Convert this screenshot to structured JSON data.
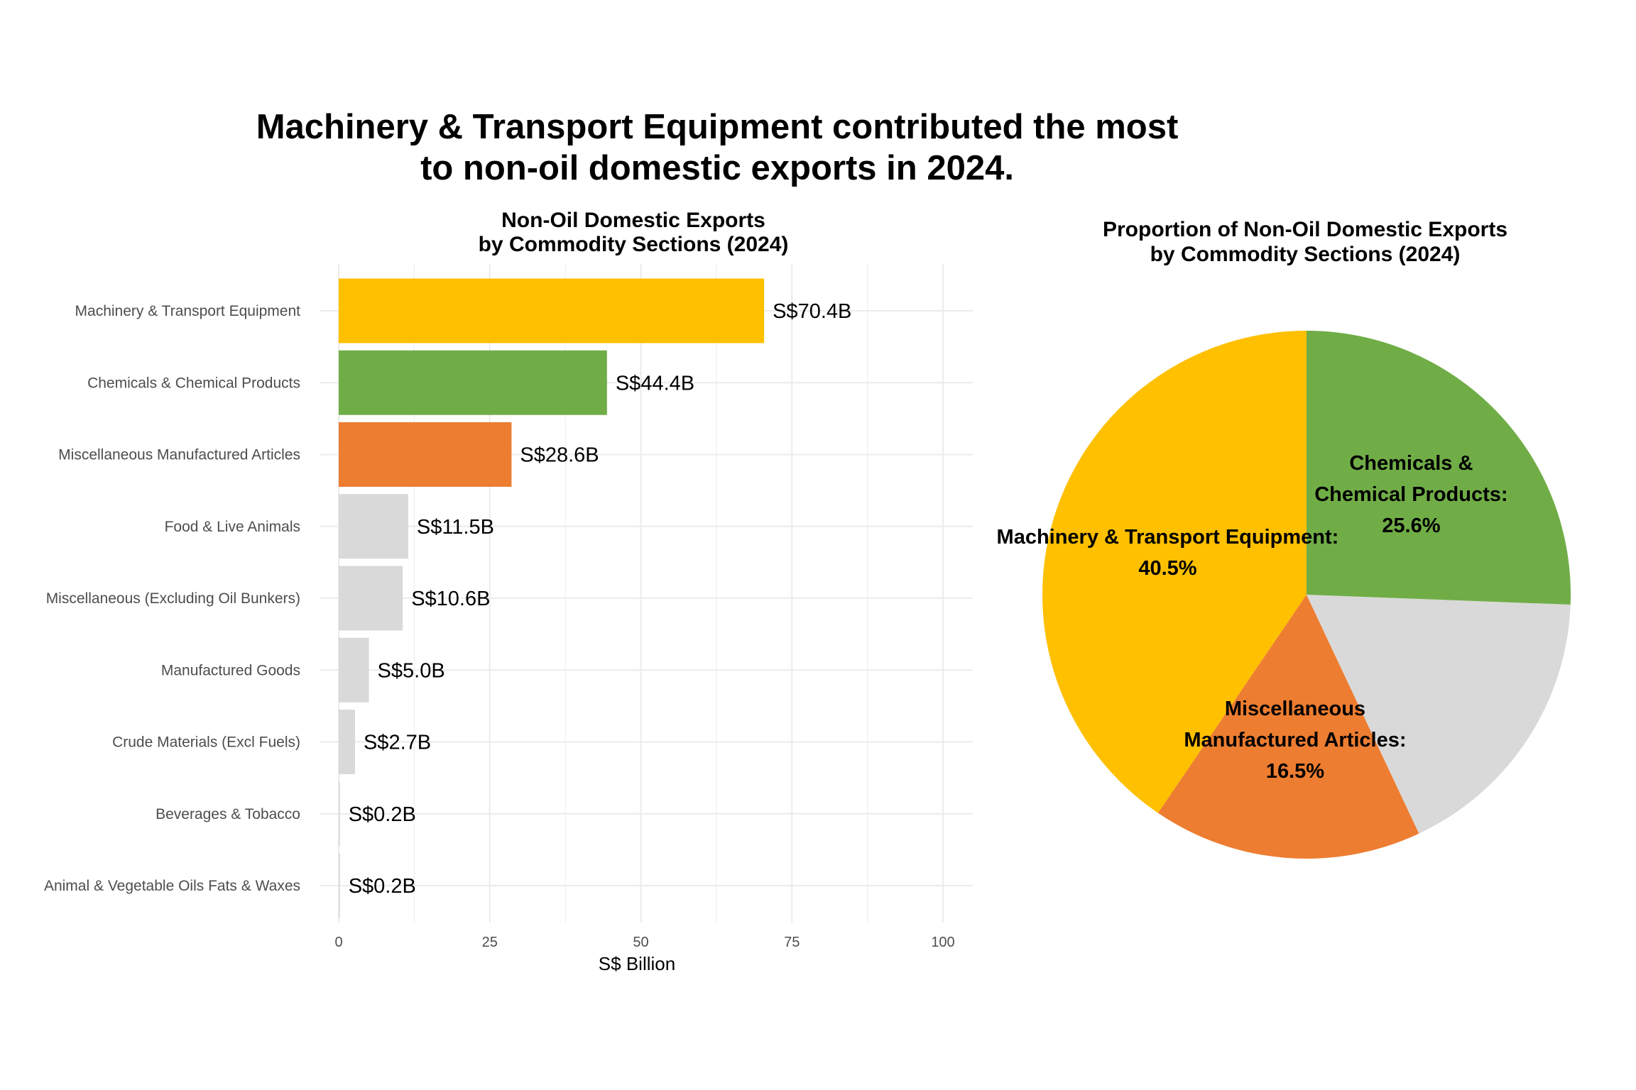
{
  "title_lines": [
    "Machinery & Transport Equipment contributed the most",
    "to non-oil domestic exports in 2024."
  ],
  "chart_data": [
    {
      "type": "bar",
      "orientation": "horizontal",
      "title_lines": [
        "Non-Oil Domestic Exports",
        "by Commodity Sections (2024)"
      ],
      "xlabel": "S$ Billion",
      "ylabel": "",
      "xlim": [
        0,
        100
      ],
      "xticks": [
        0,
        25,
        50,
        75,
        100
      ],
      "grid": true,
      "categories": [
        "Machinery & Transport Equipment",
        "Chemicals & Chemical Products",
        "Miscellaneous Manufactured Articles",
        "Food & Live Animals",
        "Miscellaneous (Excluding Oil Bunkers)",
        "Manufactured Goods",
        "Crude Materials (Excl Fuels)",
        "Beverages & Tobacco",
        "Animal & Vegetable Oils Fats & Waxes"
      ],
      "values": [
        70.4,
        44.4,
        28.6,
        11.5,
        10.6,
        5.0,
        2.7,
        0.2,
        0.2
      ],
      "data_labels": [
        "S$70.4B",
        "S$44.4B",
        "S$28.6B",
        "S$11.5B",
        "S$10.6B",
        "S$5.0B",
        "S$2.7B",
        "S$0.2B",
        "S$0.2B"
      ],
      "colors": [
        "#FFC000",
        "#70AD47",
        "#ED7D31",
        "#D9D9D9",
        "#D9D9D9",
        "#D9D9D9",
        "#D9D9D9",
        "#D9D9D9",
        "#D9D9D9"
      ]
    },
    {
      "type": "pie",
      "title_lines": [
        "Proportion of Non-Oil Domestic Exports",
        "by Commodity Sections (2024)"
      ],
      "slices": [
        {
          "value": 40.5,
          "color": "#FFC000",
          "label_lines": [
            "Machinery & Transport Equipment:",
            "40.5%"
          ]
        },
        {
          "value": 16.5,
          "color": "#ED7D31",
          "label_lines": [
            "Miscellaneous",
            "Manufactured Articles:",
            "16.5%"
          ]
        },
        {
          "value": 17.4,
          "color": "#D9D9D9",
          "label_lines": []
        },
        {
          "value": 25.6,
          "color": "#70AD47",
          "label_lines": [
            "Chemicals &",
            "Chemical Products:",
            "25.6%"
          ]
        }
      ]
    }
  ]
}
